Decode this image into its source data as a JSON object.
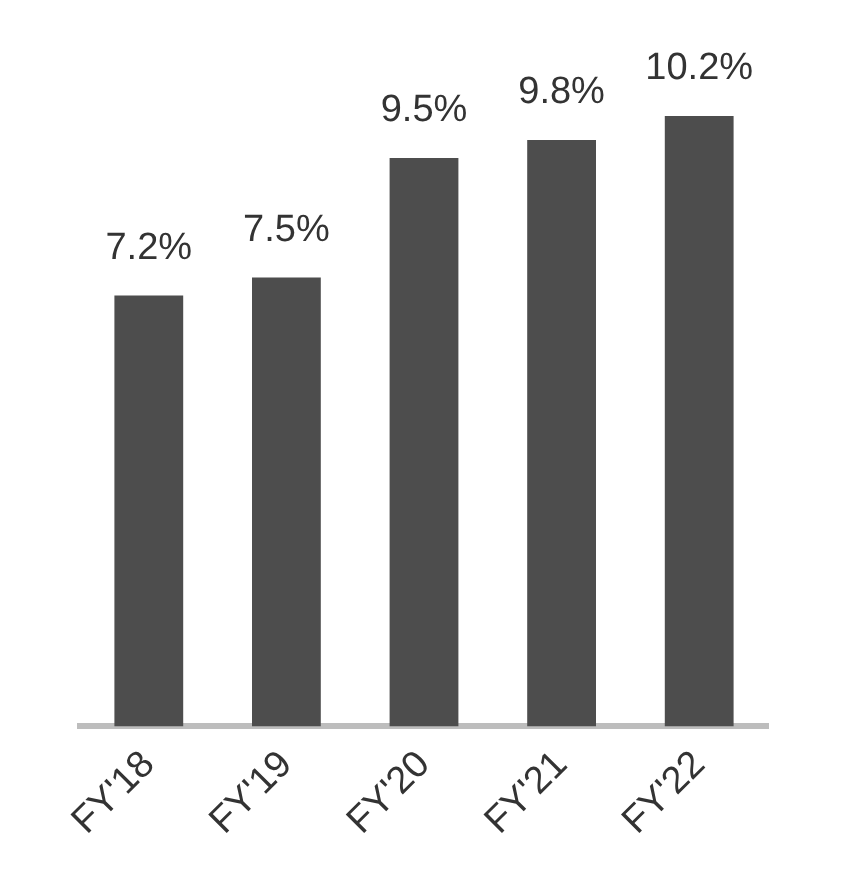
{
  "chart_data": {
    "type": "bar",
    "categories": [
      "FY'18",
      "FY'19",
      "FY'20",
      "FY'21",
      "FY'22"
    ],
    "values": [
      7.2,
      7.5,
      9.5,
      9.8,
      10.2
    ],
    "value_labels": [
      "7.2%",
      "7.5%",
      "9.5%",
      "9.8%",
      "10.2%"
    ],
    "color": "#4d4d4d",
    "grid": false,
    "tick_labels": "x"
  }
}
